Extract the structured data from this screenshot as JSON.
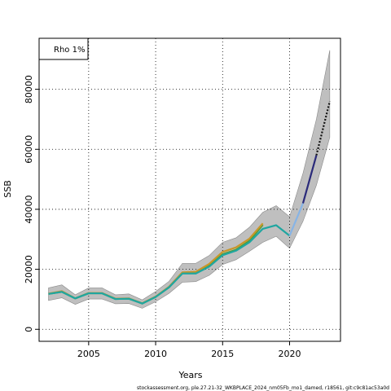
{
  "chart_data": {
    "type": "line",
    "xlabel": "Years",
    "ylabel": "SSB",
    "xlim": [
      2001.3,
      2023.8
    ],
    "ylim": [
      -4000,
      97000
    ],
    "x_ticks": [
      2005,
      2010,
      2015,
      2020
    ],
    "x_tick_labels": [
      "2005",
      "2010",
      "2015",
      "2020"
    ],
    "y_ticks": [
      0,
      20000,
      40000,
      60000,
      80000
    ],
    "y_tick_labels": [
      "0",
      "20000",
      "40000",
      "60000",
      "80000"
    ],
    "grid": true,
    "legend": {
      "placement": "top-left",
      "text": "Rho 1%"
    },
    "footer": "stockassessment.org, ple.27.21-32_WKBPLACE_2024_nm05Fb_mo1_damed, r18561, git:c9c81ac53a0d",
    "confidence_band": {
      "x": [
        2002,
        2003,
        2004,
        2005,
        2006,
        2007,
        2008,
        2009,
        2010,
        2011,
        2012,
        2013,
        2014,
        2015,
        2016,
        2017,
        2018,
        2019,
        2020,
        2021,
        2022,
        2023
      ],
      "upper": [
        13800,
        14800,
        11500,
        13800,
        13800,
        11500,
        11800,
        9800,
        12600,
        16000,
        22000,
        22000,
        24600,
        29000,
        30500,
        34000,
        39000,
        41200,
        37500,
        52000,
        70000,
        93000
      ],
      "lower": [
        9600,
        10500,
        8300,
        10100,
        10100,
        8500,
        8600,
        7000,
        9200,
        12000,
        15700,
        15900,
        18000,
        21600,
        23200,
        26000,
        29000,
        31000,
        27000,
        36000,
        48000,
        64000
      ]
    },
    "series": [
      {
        "color": "#4b9e3c",
        "x": [
          2002,
          2003,
          2004,
          2005,
          2006,
          2007,
          2008,
          2009,
          2010,
          2011,
          2012,
          2013,
          2014,
          2015,
          2016,
          2017,
          2018
        ],
        "values": [
          11800,
          12500,
          10300,
          12000,
          12000,
          10100,
          10200,
          8600,
          10800,
          14000,
          18800,
          18800,
          21200,
          25000,
          26500,
          29500,
          34800
        ]
      },
      {
        "color": "#c8962a",
        "x": [
          2002,
          2003,
          2004,
          2005,
          2006,
          2007,
          2008,
          2009,
          2010,
          2011,
          2012,
          2013,
          2014,
          2015,
          2016,
          2017,
          2018
        ],
        "values": [
          11900,
          12700,
          10300,
          12100,
          12100,
          10200,
          10300,
          8700,
          10900,
          14200,
          19000,
          19200,
          21800,
          25800,
          27300,
          30200,
          35300
        ]
      },
      {
        "color": "#1fa6a0",
        "x": [
          2002,
          2003,
          2004,
          2005,
          2006,
          2007,
          2008,
          2009,
          2010,
          2011,
          2012,
          2013,
          2014,
          2015,
          2016,
          2017,
          2018,
          2019,
          2020
        ],
        "values": [
          11800,
          12500,
          10300,
          12000,
          12000,
          10100,
          10200,
          8600,
          10800,
          14000,
          18600,
          18600,
          20900,
          24700,
          26200,
          29000,
          33500,
          34700,
          31200
        ]
      },
      {
        "color": "#87b4e6",
        "x": [
          2020,
          2021
        ],
        "values": [
          31200,
          42000
        ]
      },
      {
        "color": "#2a2a7a",
        "x": [
          2021,
          2022
        ],
        "values": [
          42000,
          58000
        ]
      },
      {
        "color": "#111111",
        "dashed": true,
        "x": [
          2022,
          2023
        ],
        "values": [
          58000,
          76000
        ]
      }
    ]
  }
}
